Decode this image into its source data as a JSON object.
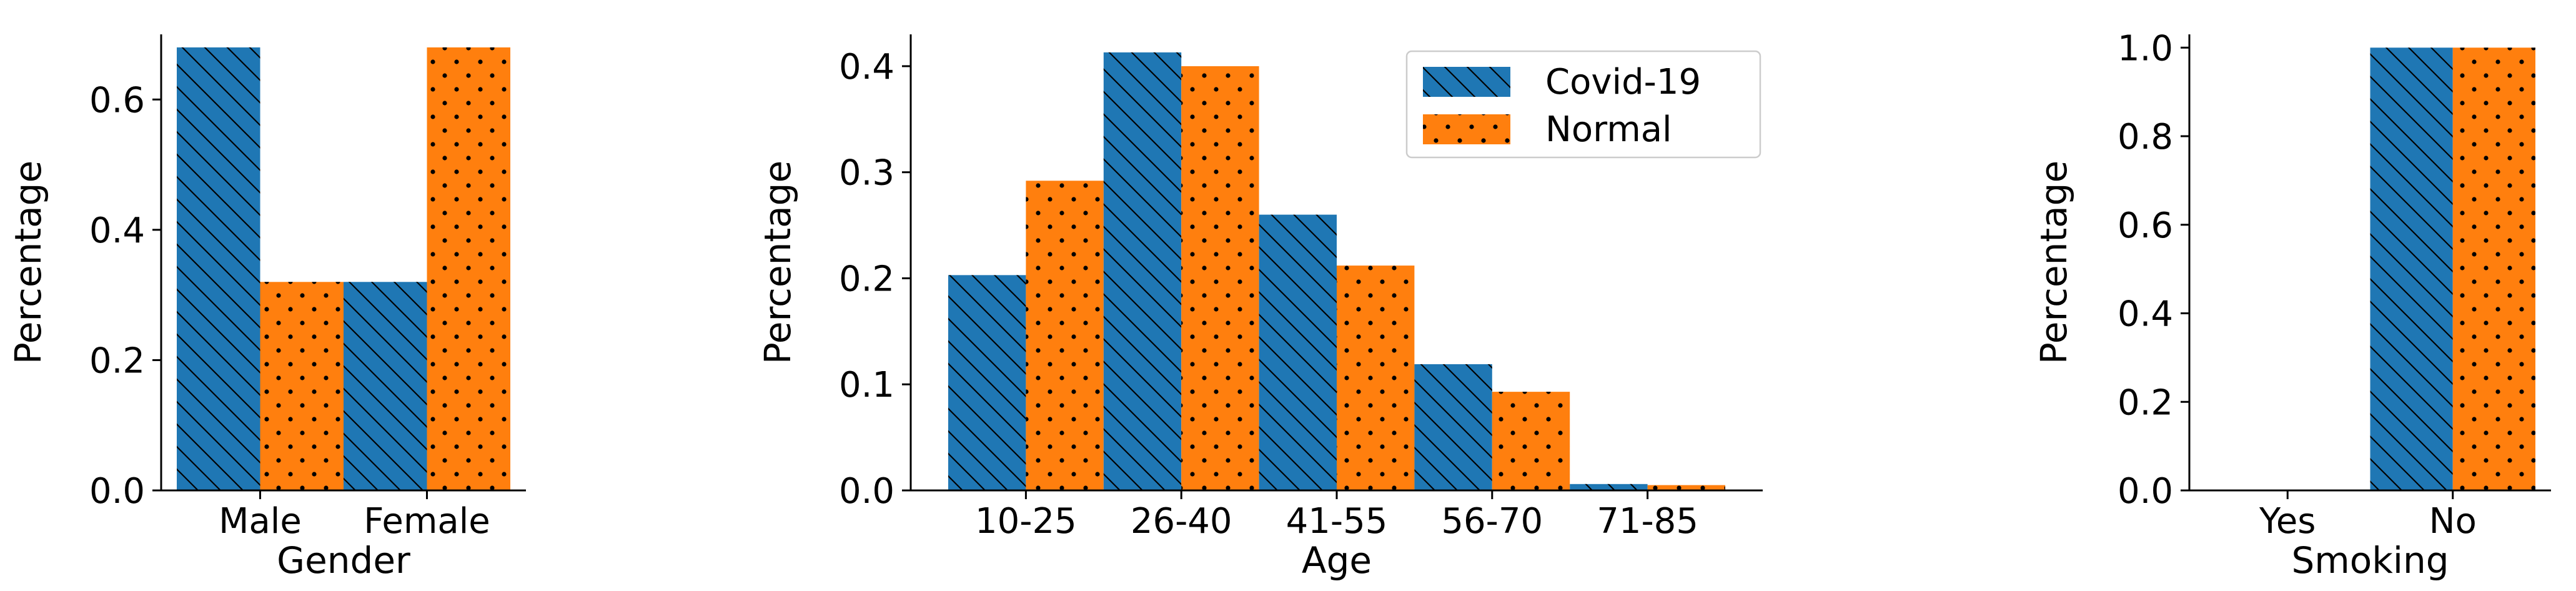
{
  "colors": {
    "covid": "#1f77b4",
    "normal": "#ff7f0e",
    "axis": "#000000",
    "legend_border": "#cccccc"
  },
  "legend": {
    "entries": [
      "Covid-19",
      "Normal"
    ]
  },
  "chart_data": [
    {
      "type": "bar",
      "title": "",
      "xlabel": "Gender",
      "ylabel": "Percentage",
      "categories": [
        "Male",
        "Female"
      ],
      "series": [
        {
          "name": "Covid-19",
          "values": [
            0.68,
            0.32
          ]
        },
        {
          "name": "Normal",
          "values": [
            0.32,
            0.68
          ]
        }
      ],
      "ylim": [
        0,
        0.7
      ],
      "yticks": [
        0.0,
        0.2,
        0.4,
        0.6
      ],
      "ytick_labels": [
        "0.0",
        "0.2",
        "0.4",
        "0.6"
      ],
      "legend": false
    },
    {
      "type": "bar",
      "title": "",
      "xlabel": "Age",
      "ylabel": "Percentage",
      "categories": [
        "10-25",
        "26-40",
        "41-55",
        "56-70",
        "71-85"
      ],
      "series": [
        {
          "name": "Covid-19",
          "values": [
            0.203,
            0.413,
            0.26,
            0.119,
            0.006
          ]
        },
        {
          "name": "Normal",
          "values": [
            0.292,
            0.4,
            0.212,
            0.093,
            0.005
          ]
        }
      ],
      "ylim": [
        0,
        0.43
      ],
      "yticks": [
        0.0,
        0.1,
        0.2,
        0.3,
        0.4
      ],
      "ytick_labels": [
        "0.0",
        "0.1",
        "0.2",
        "0.3",
        "0.4"
      ],
      "legend": true,
      "legend_position": "top-right"
    },
    {
      "type": "bar",
      "title": "",
      "xlabel": "Smoking",
      "ylabel": "Percentage",
      "categories": [
        "Yes",
        "No"
      ],
      "series": [
        {
          "name": "Covid-19",
          "values": [
            0.0,
            1.0
          ]
        },
        {
          "name": "Normal",
          "values": [
            0.0,
            1.0
          ]
        }
      ],
      "ylim": [
        0,
        1.03
      ],
      "yticks": [
        0.0,
        0.2,
        0.4,
        0.6,
        0.8,
        1.0
      ],
      "ytick_labels": [
        "0.0",
        "0.2",
        "0.4",
        "0.6",
        "0.8",
        "1.0"
      ],
      "legend": false
    }
  ]
}
